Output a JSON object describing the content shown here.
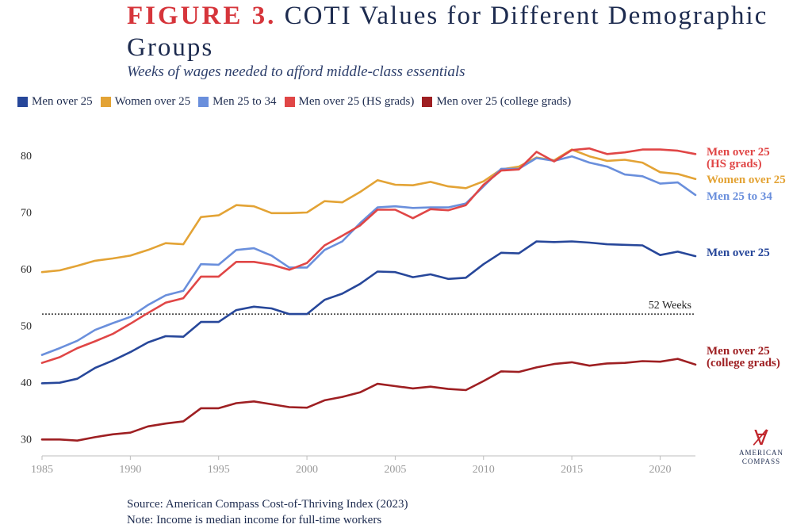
{
  "header": {
    "figure_label": "FIGURE 3.",
    "title": "COTI Values for Different Demographic Groups",
    "subtitle": "Weeks of wages needed to afford middle-class essentials"
  },
  "footer": {
    "source": "Source: American Compass Cost-of-Thriving Index (2023)",
    "note": "Note: Income is median income for full-time workers"
  },
  "logo": {
    "line1": "AMERICAN",
    "line2": "COMPASS",
    "icon": "compass-a-icon"
  },
  "chart_data": {
    "type": "line",
    "title": "COTI Values for Different Demographic Groups",
    "subtitle": "Weeks of wages needed to afford middle-class essentials",
    "xlabel": "",
    "ylabel": "",
    "xlim": [
      1985,
      2022
    ],
    "ylim": [
      27,
      85
    ],
    "x_ticks": [
      1985,
      1990,
      1995,
      2000,
      2005,
      2010,
      2015,
      2020
    ],
    "y_ticks": [
      30,
      40,
      50,
      60,
      70,
      80
    ],
    "grid": false,
    "legend_position": "top",
    "reference_line": {
      "value": 52,
      "label": "52 Weeks",
      "style": "dotted"
    },
    "x": [
      1985,
      1986,
      1987,
      1988,
      1989,
      1990,
      1991,
      1992,
      1993,
      1994,
      1995,
      1996,
      1997,
      1998,
      1999,
      2000,
      2001,
      2002,
      2003,
      2004,
      2005,
      2006,
      2007,
      2008,
      2009,
      2010,
      2011,
      2012,
      2013,
      2014,
      2015,
      2016,
      2017,
      2018,
      2019,
      2020,
      2021,
      2022
    ],
    "series": [
      {
        "name": "Men over 25",
        "end_label": [
          "Men over 25"
        ],
        "color": "#27479a",
        "values": [
          39.8,
          39.9,
          40.6,
          42.5,
          43.8,
          45.3,
          47.0,
          48.1,
          48.0,
          50.6,
          50.6,
          52.7,
          53.3,
          53.0,
          52.0,
          52.0,
          54.5,
          55.6,
          57.3,
          59.5,
          59.4,
          58.5,
          59.0,
          58.2,
          58.4,
          60.8,
          62.8,
          62.7,
          64.8,
          64.7,
          64.8,
          64.6,
          64.3,
          64.2,
          64.1,
          62.4,
          63.0,
          62.2
        ]
      },
      {
        "name": "Women over 25",
        "end_label": [
          "Women over 25"
        ],
        "color": "#e3a335",
        "values": [
          59.4,
          59.7,
          60.5,
          61.4,
          61.8,
          62.3,
          63.3,
          64.5,
          64.3,
          69.1,
          69.4,
          71.2,
          71.0,
          69.8,
          69.8,
          69.9,
          71.9,
          71.7,
          73.5,
          75.6,
          74.8,
          74.7,
          75.3,
          74.5,
          74.2,
          75.4,
          77.5,
          78.0,
          79.6,
          79.1,
          81.0,
          79.8,
          79.0,
          79.2,
          78.7,
          77.0,
          76.7,
          75.8
        ]
      },
      {
        "name": "Men 25 to 34",
        "end_label": [
          "Men 25 to 34"
        ],
        "color": "#6a8fdc",
        "values": [
          44.8,
          46.0,
          47.3,
          49.2,
          50.4,
          51.5,
          53.6,
          55.3,
          56.1,
          60.8,
          60.7,
          63.3,
          63.6,
          62.3,
          60.2,
          60.2,
          63.3,
          64.8,
          68.0,
          70.8,
          71.0,
          70.7,
          70.8,
          70.8,
          71.5,
          74.5,
          77.6,
          77.6,
          79.5,
          79.0,
          79.8,
          78.7,
          78.0,
          76.6,
          76.3,
          75.0,
          75.2,
          73.0
        ]
      },
      {
        "name": "Men over 25 (HS grads)",
        "end_label": [
          "Men over 25",
          "(HS grads)"
        ],
        "color": "#e04646",
        "values": [
          43.4,
          44.4,
          46.0,
          47.2,
          48.5,
          50.3,
          52.2,
          54.0,
          54.8,
          58.6,
          58.6,
          61.2,
          61.2,
          60.7,
          59.8,
          61.0,
          64.1,
          65.8,
          67.6,
          70.4,
          70.4,
          68.9,
          70.5,
          70.3,
          71.2,
          74.8,
          77.3,
          77.5,
          80.6,
          78.9,
          80.9,
          81.2,
          80.2,
          80.5,
          81.0,
          81.0,
          80.8,
          80.2
        ]
      },
      {
        "name": "Men over 25 (college grads)",
        "end_label": [
          "Men over 25",
          "(college grads)"
        ],
        "color": "#9e1f22",
        "values": [
          29.9,
          29.9,
          29.7,
          30.3,
          30.8,
          31.1,
          32.2,
          32.7,
          33.1,
          35.4,
          35.4,
          36.3,
          36.6,
          36.1,
          35.6,
          35.5,
          36.8,
          37.4,
          38.2,
          39.7,
          39.3,
          38.9,
          39.2,
          38.8,
          38.6,
          40.2,
          41.9,
          41.8,
          42.6,
          43.2,
          43.5,
          42.9,
          43.3,
          43.4,
          43.7,
          43.6,
          44.1,
          43.1
        ]
      }
    ]
  }
}
